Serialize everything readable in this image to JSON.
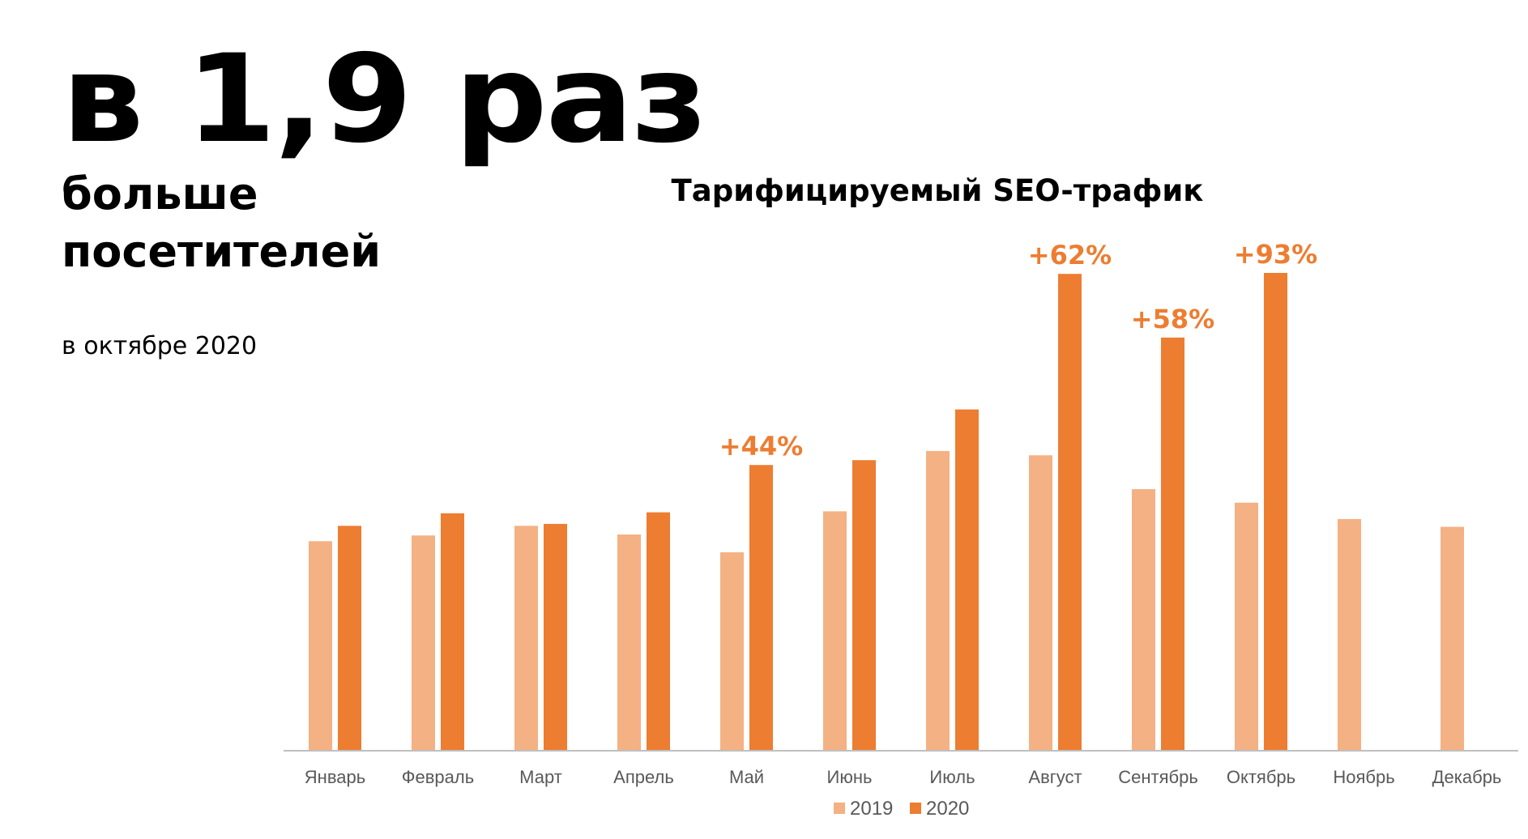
{
  "headline": {
    "main": "в 1,9 раз",
    "sub_line1": "больше",
    "sub_line2": "посетителей",
    "note": "в октябре 2020"
  },
  "chart_data": {
    "type": "bar",
    "title": "Тарифицируемый SEO-трафик",
    "xlabel": "",
    "ylabel": "",
    "grid": false,
    "legend_position": "bottom",
    "ylim": [
      0,
      100
    ],
    "categories": [
      "Январь",
      "Февраль",
      "Март",
      "Апрель",
      "Май",
      "Июнь",
      "Июль",
      "Август",
      "Сентябрь",
      "Октябрь",
      "Ноябрь",
      "Декабрь"
    ],
    "series": [
      {
        "name": "2019",
        "color": "#F4B183",
        "values": [
          43.4,
          44.6,
          46.6,
          44.8,
          41.1,
          49.6,
          62.1,
          61.2,
          54.2,
          51.4,
          48.0,
          46.4
        ]
      },
      {
        "name": "2020",
        "color": "#ED7D31",
        "values": [
          46.6,
          49.2,
          47.0,
          49.4,
          59.2,
          60.2,
          70.7,
          98.8,
          85.6,
          99.0,
          null,
          null
        ]
      }
    ],
    "annotations": [
      {
        "category": "Май",
        "text": "+44%"
      },
      {
        "category": "Август",
        "text": "+62%"
      },
      {
        "category": "Сентябрь",
        "text": "+58%"
      },
      {
        "category": "Октябрь",
        "text": "+93%"
      }
    ]
  }
}
